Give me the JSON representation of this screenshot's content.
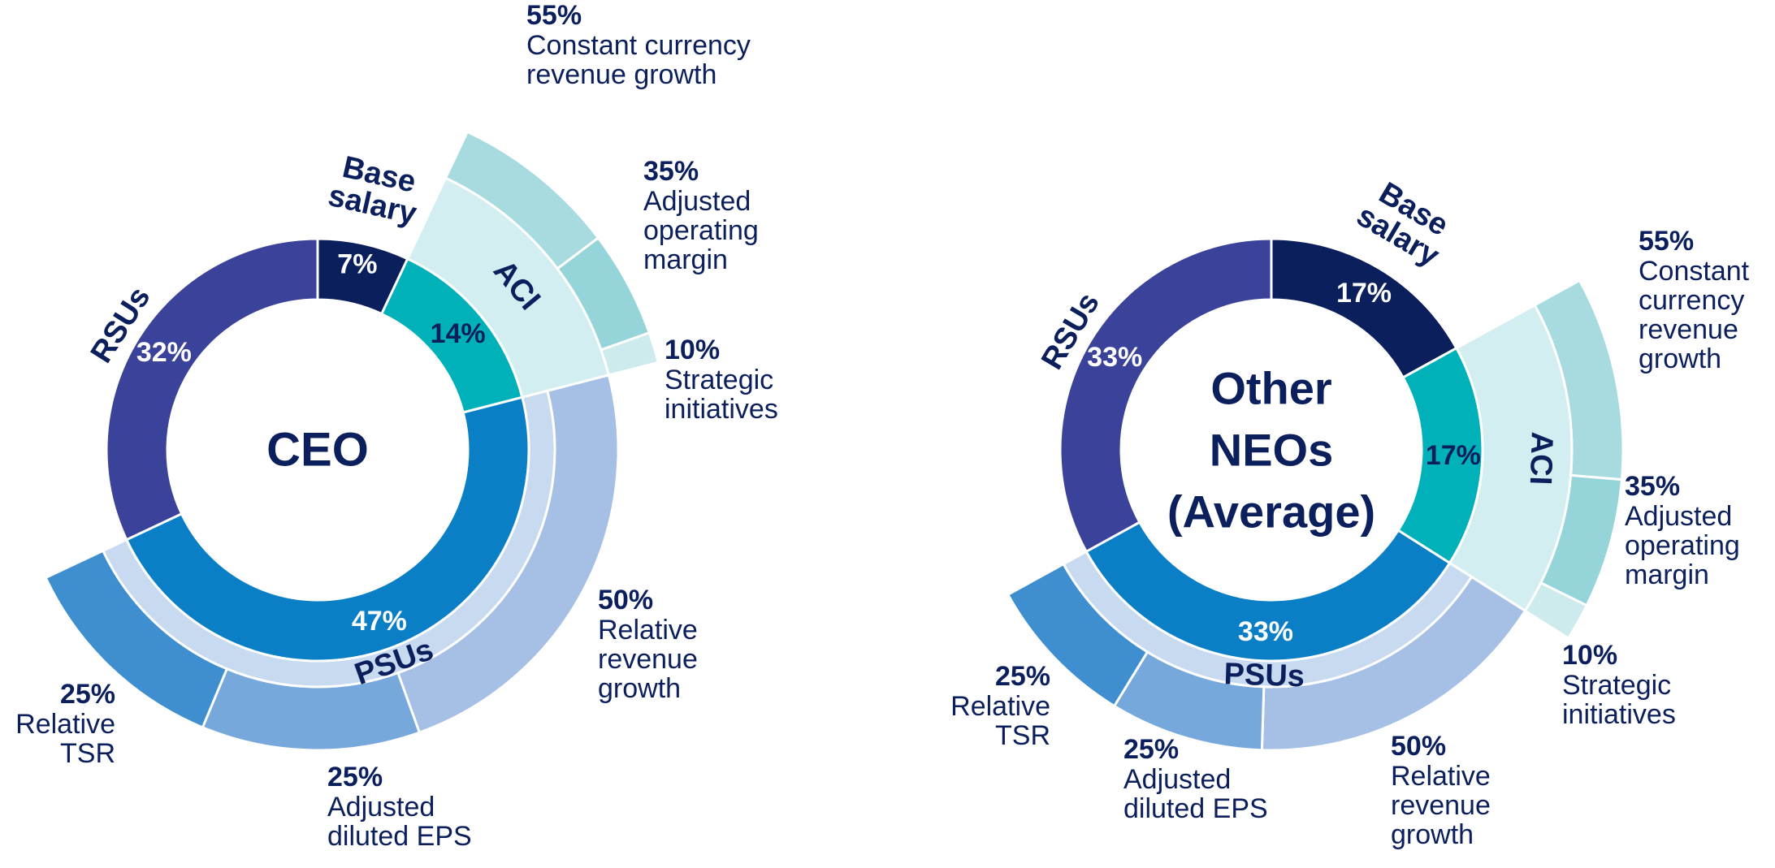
{
  "chart_data": [
    {
      "type": "pie",
      "center_label": "CEO",
      "pay_mix": [
        {
          "name": "Base salary",
          "value": 7,
          "label": "7%",
          "color": "#0b1f5c"
        },
        {
          "name": "ACI",
          "value": 14,
          "label": "14%",
          "color": "#00b1b9"
        },
        {
          "name": "PSUs",
          "value": 47,
          "label": "47%",
          "color": "#0a7fc5"
        },
        {
          "name": "RSUs",
          "value": 32,
          "label": "32%",
          "color": "#3a4399"
        }
      ],
      "band_labels": {
        "aci": "ACI",
        "psus": "PSUs",
        "rsus": "RSUs",
        "base_salary": [
          "Base",
          "salary"
        ]
      },
      "aci_metrics": [
        {
          "weight": 55,
          "pct": "55%",
          "desc": [
            "Constant currency",
            "revenue growth"
          ],
          "color": "#a7dbe0"
        },
        {
          "weight": 35,
          "pct": "35%",
          "desc": [
            "Adjusted",
            "operating",
            "margin"
          ],
          "color": "#95d5da"
        },
        {
          "weight": 10,
          "pct": "10%",
          "desc": [
            "Strategic",
            "initiatives"
          ],
          "color": "#cdebed"
        }
      ],
      "psu_metrics": [
        {
          "weight": 50,
          "pct": "50%",
          "desc": [
            "Relative",
            "revenue",
            "growth"
          ],
          "color": "#a5c0e4"
        },
        {
          "weight": 25,
          "pct": "25%",
          "desc": [
            "Adjusted",
            "diluted EPS"
          ],
          "color": "#77a8dc"
        },
        {
          "weight": 25,
          "pct": "25%",
          "desc": [
            "Relative",
            "TSR"
          ],
          "color": "#3f8fd0"
        }
      ]
    },
    {
      "type": "pie",
      "center_label": [
        "Other",
        "NEOs",
        "(Average)"
      ],
      "pay_mix": [
        {
          "name": "Base salary",
          "value": 17,
          "label": "17%",
          "color": "#0b1f5c"
        },
        {
          "name": "ACI",
          "value": 17,
          "label": "17%",
          "color": "#00b1b9"
        },
        {
          "name": "PSUs",
          "value": 33,
          "label": "33%",
          "color": "#0a7fc5"
        },
        {
          "name": "RSUs",
          "value": 33,
          "label": "33%",
          "color": "#3a4399"
        }
      ],
      "band_labels": {
        "aci": "ACI",
        "psus": "PSUs",
        "rsus": "RSUs",
        "base_salary": [
          "Base",
          "salary"
        ]
      },
      "aci_metrics": [
        {
          "weight": 55,
          "pct": "55%",
          "desc": [
            "Constant",
            "currency",
            "revenue",
            "growth"
          ],
          "color": "#a7dbe0"
        },
        {
          "weight": 35,
          "pct": "35%",
          "desc": [
            "Adjusted",
            "operating",
            "margin"
          ],
          "color": "#95d5da"
        },
        {
          "weight": 10,
          "pct": "10%",
          "desc": [
            "Strategic",
            "initiatives"
          ],
          "color": "#cdebed"
        }
      ],
      "psu_metrics": [
        {
          "weight": 50,
          "pct": "50%",
          "desc": [
            "Relative",
            "revenue",
            "growth"
          ],
          "color": "#a5c0e4"
        },
        {
          "weight": 25,
          "pct": "25%",
          "desc": [
            "Adjusted",
            "diluted EPS"
          ],
          "color": "#77a8dc"
        },
        {
          "weight": 25,
          "pct": "25%",
          "desc": [
            "Relative",
            "TSR"
          ],
          "color": "#3f8fd0"
        }
      ]
    }
  ],
  "colors": {
    "text": "#0b1f5c",
    "aci_band": "#d3eef1",
    "psu_band": "#c8daf0",
    "on_dark_text": "#ffffff"
  }
}
